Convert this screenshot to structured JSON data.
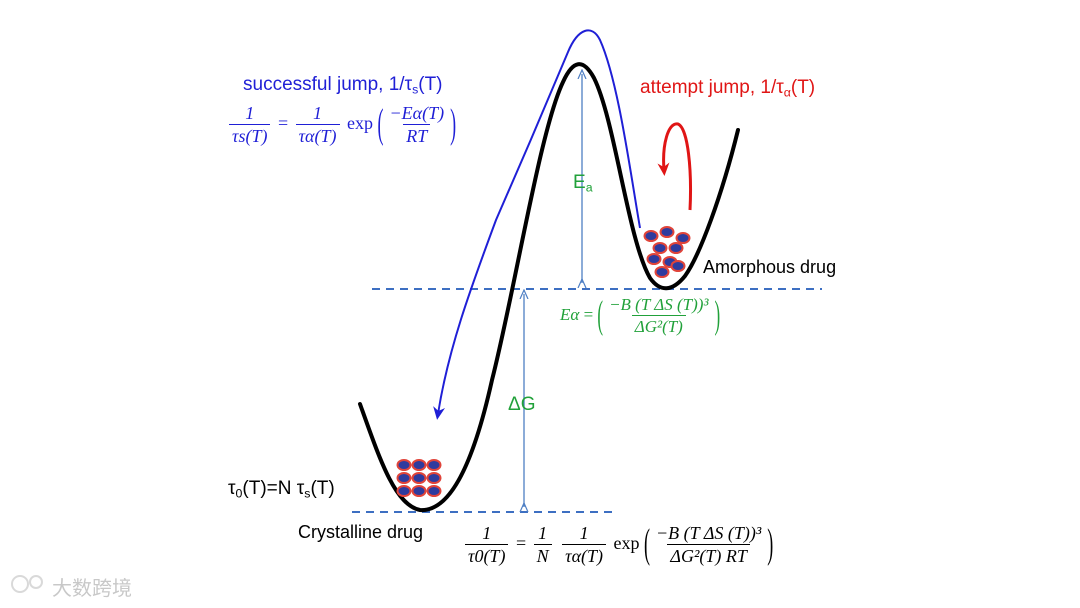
{
  "diagram": {
    "title_successful": "successful jump, 1/τ",
    "title_successful_sub": "s",
    "title_successful_tail": "(T)",
    "title_attempt": "attempt jump, 1/τ",
    "title_attempt_sub": "α",
    "title_attempt_tail": "(T)",
    "label_amorphous": "Amorphous drug",
    "label_crystalline": "Crystalline drug",
    "label_ea": "E",
    "label_ea_sub": "a",
    "label_dg": "ΔG",
    "label_tau0_a": "τ",
    "label_tau0_sub": "0",
    "label_tau0_b": "(T)=N τ",
    "label_tau0_sub2": "s",
    "label_tau0_c": "(T)"
  },
  "eq_successful": {
    "lhs_num": "1",
    "lhs_den": "τs(T)",
    "eq": "=",
    "rhs_num": "1",
    "rhs_den": "τα(T)",
    "fn": "exp",
    "arg_num": "−Eα(T)",
    "arg_den": "RT"
  },
  "eq_activation": {
    "lhs": "Eα",
    "eq": "=",
    "num": "−B (T ΔS (T))³",
    "den": "ΔG²(T)"
  },
  "eq_overall": {
    "lhs_num": "1",
    "lhs_den": "τ0(T)",
    "eq": "=",
    "n_num": "1",
    "n_den": "N",
    "r_num": "1",
    "r_den": "τα(T)",
    "fn": "exp",
    "arg_num": "−B (T ΔS (T))³",
    "arg_den": "ΔG²(T) RT"
  },
  "watermark": "大数跨境",
  "colors": {
    "curve": "#000000",
    "blue": "#1f1fd6",
    "red": "#e01515",
    "green": "#21a13a",
    "arrow_blue": "#4e7fc4",
    "dash": "#3d6fc2",
    "dot_fill": "#2e3b9e",
    "dot_edge": "#e0443a"
  }
}
